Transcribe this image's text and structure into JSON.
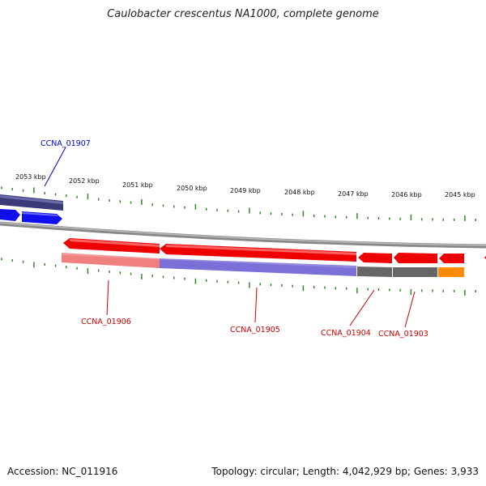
{
  "title": "Caulobacter crescentus NA1000, complete genome",
  "footer": {
    "accession": "Accession: NC_011916",
    "summary": "Topology: circular; Length: 4,042,929 bp; Genes: 3,933"
  },
  "ruler": {
    "labels": [
      "2053 kbp",
      "2052 kbp",
      "2051 kbp",
      "2050 kbp",
      "2049 kbp",
      "2048 kbp",
      "2047 kbp",
      "2046 kbp",
      "2045 kbp"
    ],
    "tick_color": "#2e8b22"
  },
  "genes": [
    {
      "id": "CCNA_01907",
      "strand": "forward",
      "color": "#0000dd"
    },
    {
      "id": "CCNA_01906",
      "strand": "reverse",
      "color": "#cc0000"
    },
    {
      "id": "CCNA_01905",
      "strand": "reverse",
      "color": "#cc0000"
    },
    {
      "id": "CCNA_01904",
      "strand": "reverse",
      "color": "#cc0000"
    },
    {
      "id": "CCNA_01903",
      "strand": "reverse",
      "color": "#cc0000"
    }
  ],
  "colors": {
    "forward_gene": "#1010ee",
    "reverse_gene": "#ee0000",
    "backbone": "#888888",
    "cog_dark_blue": "#3a3a78",
    "cog_pink": "#f08080",
    "cog_purple": "#7b6fd8",
    "cog_gray": "#666666",
    "cog_orange": "#ff8c00"
  }
}
